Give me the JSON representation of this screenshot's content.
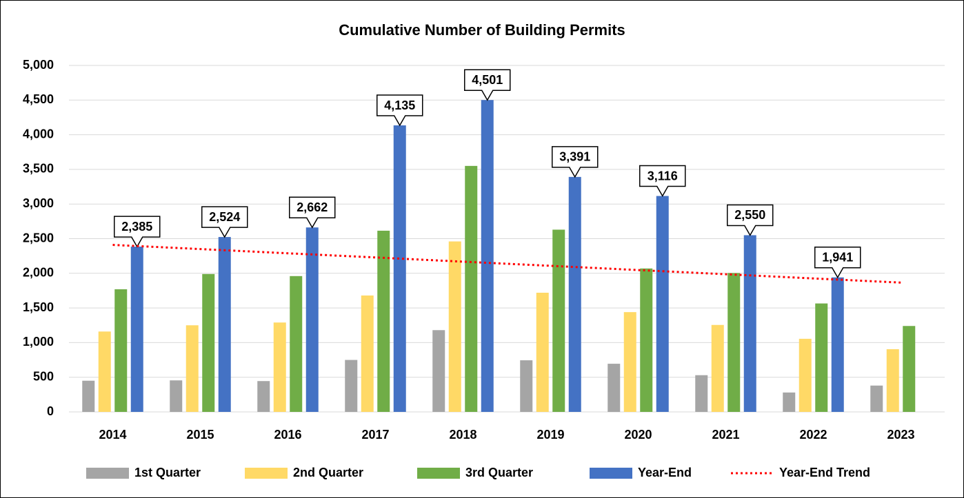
{
  "chart_data": {
    "type": "bar",
    "title": "Cumulative Number of Building Permits",
    "categories": [
      "2014",
      "2015",
      "2016",
      "2017",
      "2018",
      "2019",
      "2020",
      "2021",
      "2022",
      "2023"
    ],
    "series": [
      {
        "name": "1st Quarter",
        "color": "#a5a5a5",
        "values": [
          450,
          455,
          445,
          750,
          1180,
          745,
          695,
          530,
          280,
          380
        ]
      },
      {
        "name": "2nd Quarter",
        "color": "#ffd966",
        "values": [
          1160,
          1250,
          1290,
          1680,
          2460,
          1720,
          1440,
          1255,
          1055,
          905
        ]
      },
      {
        "name": "3rd Quarter",
        "color": "#70ad47",
        "values": [
          1770,
          1990,
          1960,
          2615,
          3550,
          2630,
          2070,
          2005,
          1565,
          1240
        ]
      },
      {
        "name": "Year-End",
        "color": "#4472c4",
        "values": [
          2385,
          2524,
          2662,
          4135,
          4501,
          3391,
          3116,
          2550,
          1941,
          null
        ],
        "value_labels": [
          "2,385",
          "2,524",
          "2,662",
          "4,135",
          "4,501",
          "3,391",
          "3,116",
          "2,550",
          "1,941",
          null
        ]
      },
      {
        "name": "Year-End Trend",
        "color": "#ff0000",
        "mark": "dotted-line",
        "values": [
          2410,
          2350,
          2289,
          2229,
          2168,
          2108,
          2047,
          1987,
          1926,
          1866
        ]
      }
    ],
    "ylim": [
      0,
      5000
    ],
    "yticks": [
      0,
      500,
      {
        "value": 1000,
        "label": "1,000"
      },
      {
        "value": 1500,
        "label": "1,500"
      },
      {
        "value": 2000,
        "label": "2,000"
      },
      {
        "value": 2500,
        "label": "2,500"
      },
      {
        "value": 3000,
        "label": "3,000"
      },
      {
        "value": 3500,
        "label": "3,500"
      },
      {
        "value": 4000,
        "label": "4,000"
      },
      {
        "value": 4500,
        "label": "4,500"
      },
      {
        "value": 5000,
        "label": "5,000"
      }
    ],
    "grid": true,
    "legend": "bottom"
  }
}
